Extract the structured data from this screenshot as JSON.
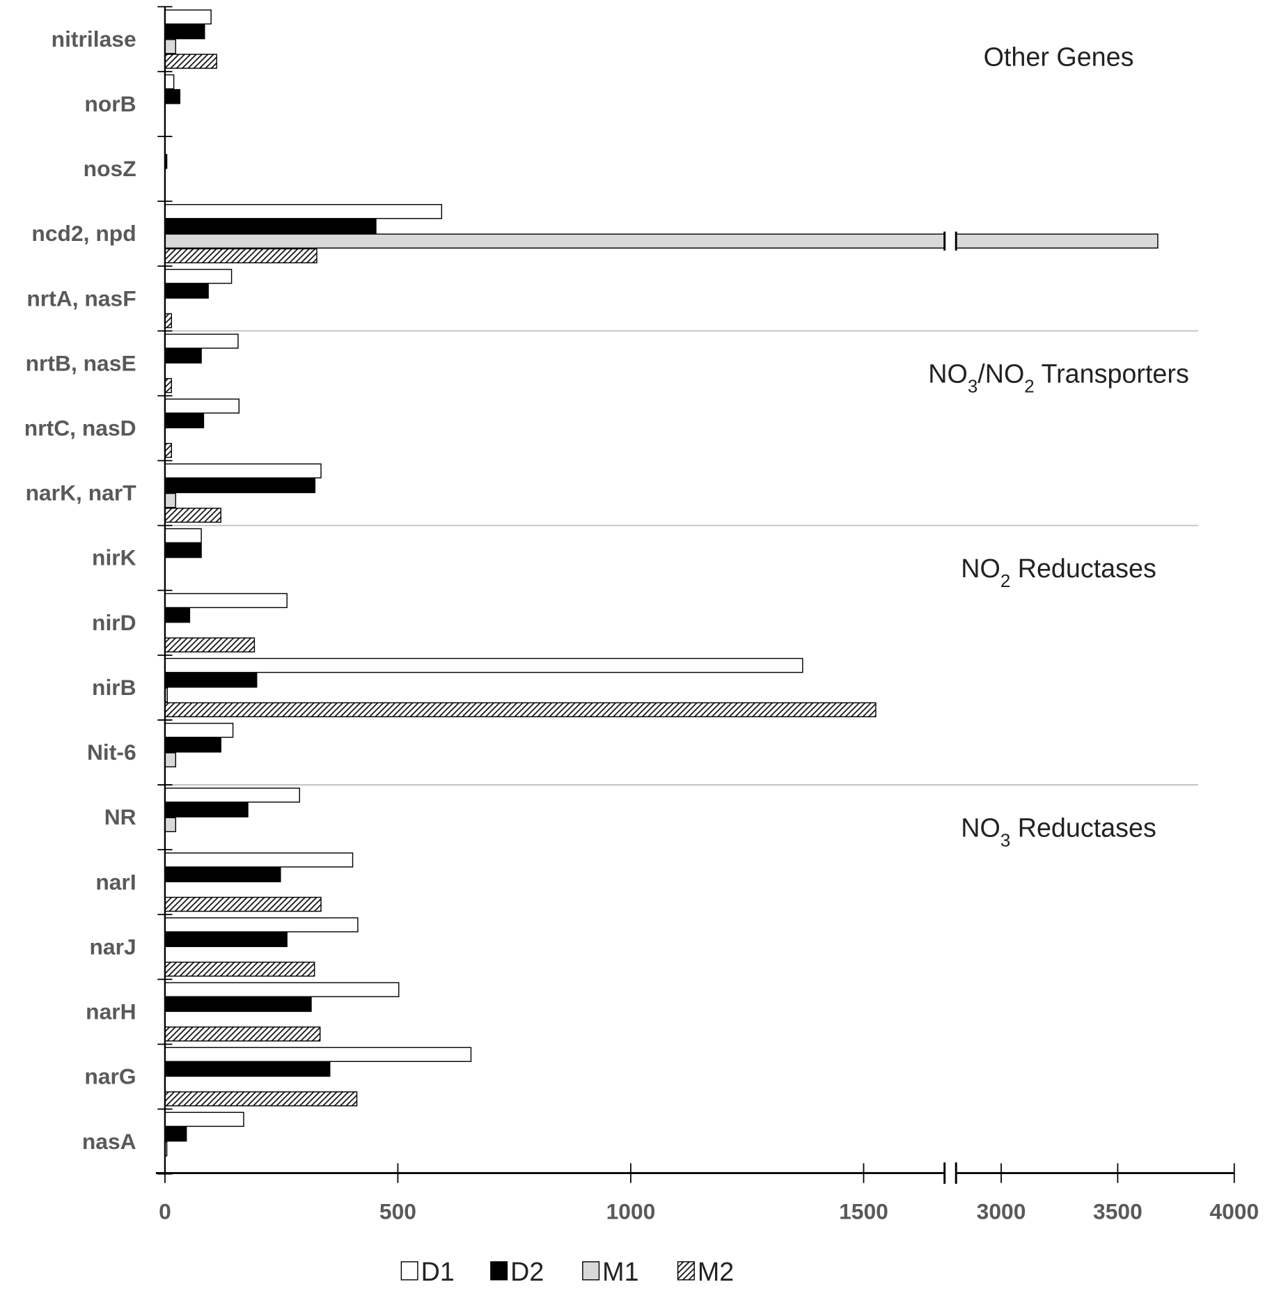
{
  "chart_data": {
    "type": "bar",
    "orientation": "horizontal",
    "title": "",
    "xlabel": "",
    "ylabel": "",
    "xlim": [
      0,
      4000
    ],
    "axis_break": {
      "from": 1700,
      "to": 2780
    },
    "tick_labels": [
      "0",
      "500",
      "1000",
      "1500",
      "3000",
      "3500",
      "4000"
    ],
    "tick_values": [
      0,
      500,
      1000,
      1500,
      3000,
      3500,
      4000
    ],
    "categories": [
      "nitrilase",
      "norB",
      "nosZ",
      "ncd2, npd",
      "nrtA, nasF",
      "nrtB, nasE",
      "nrtC, nasD",
      "narK, narT",
      "nirK",
      "nirD",
      "nirB",
      "Nit-6",
      "NR",
      "narI",
      "narJ",
      "narH",
      "narG",
      "nasA"
    ],
    "series": [
      {
        "name": "D1",
        "values": [
          99,
          19,
          0,
          594,
          143,
          157,
          159,
          335,
          78,
          262,
          1369,
          146,
          289,
          403,
          414,
          502,
          657,
          169
        ]
      },
      {
        "name": "D2",
        "values": [
          85,
          32,
          4,
          453,
          93,
          78,
          83,
          322,
          78,
          53,
          197,
          120,
          178,
          248,
          262,
          314,
          354,
          46
        ]
      },
      {
        "name": "M1",
        "values": [
          23,
          0,
          0,
          3672,
          0,
          0,
          0,
          23,
          0,
          0,
          5,
          23,
          23,
          0,
          0,
          0,
          0,
          4
        ]
      },
      {
        "name": "M2",
        "values": [
          111,
          0,
          0,
          326,
          14,
          14,
          14,
          120,
          0,
          192,
          1526,
          0,
          0,
          335,
          321,
          333,
          412,
          0
        ]
      }
    ],
    "legend_position": "bottom",
    "annotations": [
      {
        "label": "Other Genes",
        "parts": [
          {
            "t": "Other Genes"
          }
        ]
      },
      {
        "label": "NO3/NO2 Transporters",
        "parts": [
          {
            "t": "NO"
          },
          {
            "t": "3",
            "sub": true
          },
          {
            "t": "/NO"
          },
          {
            "t": "2",
            "sub": true
          },
          {
            "t": " Transporters"
          }
        ]
      },
      {
        "label": "NO2 Reductases",
        "parts": [
          {
            "t": "NO"
          },
          {
            "t": "2",
            "sub": true
          },
          {
            "t": " Reductases"
          }
        ]
      },
      {
        "label": "NO3 Reductases",
        "parts": [
          {
            "t": "NO"
          },
          {
            "t": "3",
            "sub": true
          },
          {
            "t": " Reductases"
          }
        ]
      }
    ],
    "group_separators_after": [
      "nrtA, nasF",
      "narK, narT",
      "Nit-6"
    ]
  }
}
